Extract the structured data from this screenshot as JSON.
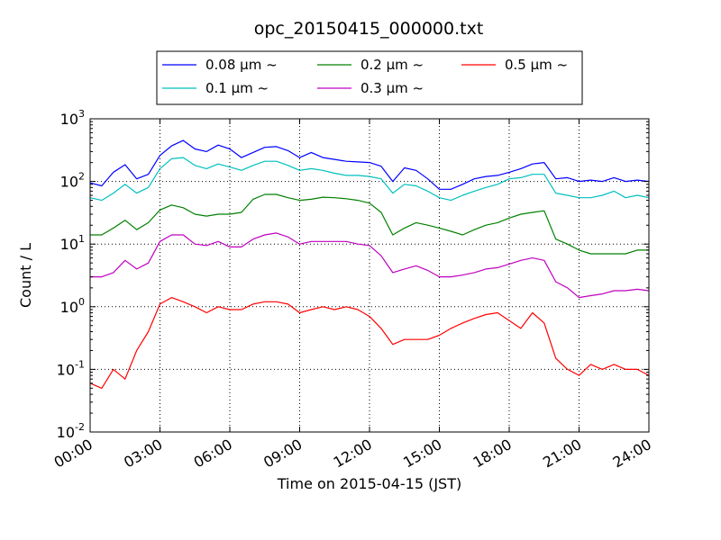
{
  "chart_data": {
    "type": "line",
    "title": "opc_20150415_000000.txt",
    "xlabel": "Time on 2015-04-15 (JST)",
    "ylabel": "Count / L",
    "xscale": "time",
    "yscale": "log",
    "xlim": [
      "00:00",
      "24:00"
    ],
    "ylim": [
      0.01,
      1000
    ],
    "grid": true,
    "grid_style": "dotted",
    "legend_position": "top-center",
    "legend_columns": 3,
    "x_tick_labels": [
      "00:00",
      "03:00",
      "06:00",
      "09:00",
      "12:00",
      "15:00",
      "18:00",
      "21:00",
      "24:00"
    ],
    "y_tick_labels": [
      {
        "base": "10",
        "exp": "-2"
      },
      {
        "base": "10",
        "exp": "-1"
      },
      {
        "base": "10",
        "exp": "0"
      },
      {
        "base": "10",
        "exp": "1"
      },
      {
        "base": "10",
        "exp": "2"
      },
      {
        "base": "10",
        "exp": "3"
      }
    ],
    "x": [
      "00:00",
      "00:30",
      "01:00",
      "01:30",
      "02:00",
      "02:30",
      "03:00",
      "03:30",
      "04:00",
      "04:30",
      "05:00",
      "05:30",
      "06:00",
      "06:30",
      "07:00",
      "07:30",
      "08:00",
      "08:30",
      "09:00",
      "09:30",
      "10:00",
      "10:30",
      "11:00",
      "11:30",
      "12:00",
      "12:30",
      "13:00",
      "13:30",
      "14:00",
      "14:30",
      "15:00",
      "15:30",
      "16:00",
      "16:30",
      "17:00",
      "17:30",
      "18:00",
      "18:30",
      "19:00",
      "19:30",
      "20:00",
      "20:30",
      "21:00",
      "21:30",
      "22:00",
      "22:30",
      "23:00",
      "23:30",
      "24:00"
    ],
    "series": [
      {
        "name": "0.08 μm ~",
        "color": "#0000ff",
        "values": [
          95,
          85,
          140,
          185,
          110,
          130,
          260,
          370,
          450,
          330,
          300,
          380,
          330,
          240,
          290,
          350,
          360,
          310,
          240,
          290,
          240,
          225,
          210,
          205,
          200,
          175,
          100,
          165,
          150,
          110,
          75,
          75,
          90,
          110,
          120,
          125,
          140,
          160,
          190,
          200,
          110,
          115,
          100,
          105,
          100,
          115,
          100,
          105,
          100
        ]
      },
      {
        "name": "0.1 μm ~",
        "color": "#00bfbf",
        "values": [
          55,
          50,
          65,
          90,
          65,
          80,
          160,
          230,
          240,
          180,
          160,
          190,
          170,
          150,
          180,
          210,
          210,
          180,
          150,
          160,
          150,
          135,
          125,
          125,
          120,
          110,
          65,
          90,
          85,
          70,
          55,
          50,
          60,
          70,
          80,
          90,
          110,
          115,
          130,
          130,
          65,
          60,
          55,
          55,
          60,
          70,
          55,
          60,
          55
        ]
      },
      {
        "name": "0.2 μm ~",
        "color": "#008000",
        "values": [
          14,
          14,
          18,
          24,
          17,
          22,
          35,
          42,
          38,
          30,
          28,
          30,
          30,
          32,
          52,
          62,
          62,
          55,
          50,
          52,
          56,
          55,
          53,
          50,
          45,
          32,
          14,
          18,
          22,
          20,
          18,
          16,
          14,
          17,
          20,
          22,
          26,
          30,
          32,
          34,
          12,
          10,
          8,
          7,
          7,
          7,
          7,
          8,
          8
        ]
      },
      {
        "name": "0.3 μm ~",
        "color": "#bf00bf",
        "values": [
          3.0,
          3.0,
          3.5,
          5.5,
          4.0,
          5.0,
          11,
          14,
          14,
          10,
          9.5,
          11,
          9,
          9,
          12,
          14,
          15,
          13,
          10,
          11,
          11,
          11,
          11,
          10,
          9.5,
          6.5,
          3.5,
          4.0,
          4.5,
          3.8,
          3.0,
          3.0,
          3.2,
          3.5,
          4.0,
          4.2,
          4.8,
          5.5,
          6.0,
          5.5,
          2.5,
          2.0,
          1.4,
          1.5,
          1.6,
          1.8,
          1.8,
          1.9,
          1.8
        ]
      },
      {
        "name": "0.5 μm ~",
        "color": "#ff0000",
        "values": [
          0.06,
          0.05,
          0.1,
          0.07,
          0.2,
          0.4,
          1.1,
          1.4,
          1.2,
          1.0,
          0.8,
          1.0,
          0.9,
          0.9,
          1.1,
          1.2,
          1.2,
          1.1,
          0.8,
          0.9,
          1.0,
          0.9,
          1.0,
          0.9,
          0.7,
          0.45,
          0.25,
          0.3,
          0.3,
          0.3,
          0.35,
          0.45,
          0.55,
          0.65,
          0.75,
          0.8,
          0.6,
          0.45,
          0.8,
          0.55,
          0.15,
          0.1,
          0.08,
          0.12,
          0.1,
          0.12,
          0.1,
          0.1,
          0.08
        ]
      }
    ]
  }
}
